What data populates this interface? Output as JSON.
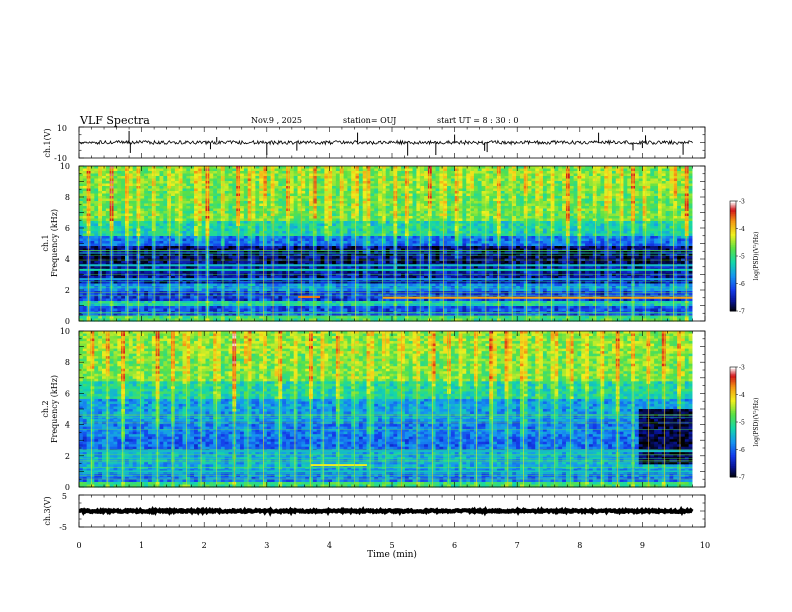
{
  "header": {
    "title": "VLF Spectra",
    "date": "Nov.9 , 2025",
    "station": "station= OUJ",
    "start": "start UT = 8 : 30 : 0"
  },
  "colorbar": {
    "label": "log(PSD)(V²/Hz)",
    "ticks": [
      -3,
      -4,
      -5,
      -6,
      -7
    ],
    "colors": [
      "#ffffff",
      "#d4101a",
      "#f7a114",
      "#f4f01b",
      "#58e04a",
      "#14d4a6",
      "#1696f0",
      "#0a2fe0",
      "#000000"
    ]
  },
  "chart_data": [
    {
      "type": "line",
      "name": "ch.1 waveform",
      "ylabel": "ch.1(V)",
      "ylim": [
        -10,
        10
      ],
      "yticks": [
        "10",
        "-10"
      ],
      "xlim": [
        0,
        9.8
      ],
      "baseline": 0,
      "noise_amplitude": 1.2,
      "spike_times": [
        0.8,
        0.82,
        2.1,
        2.2,
        3.0,
        3.48,
        4.45,
        5.25,
        5.7,
        6.0,
        6.48,
        6.52,
        8.3,
        8.85,
        9.0,
        9.05,
        9.65
      ]
    },
    {
      "type": "heatmap",
      "name": "ch.1 spectrogram",
      "ylabel": "ch.1\nFrequency (kHz)",
      "ylim": [
        0,
        10
      ],
      "yticks": [
        "0",
        "2",
        "4",
        "6",
        "8",
        "10"
      ],
      "xlim": [
        0,
        9.8
      ],
      "zlim": [
        -7,
        -3
      ],
      "bands": [
        {
          "from": 0,
          "to": 0.3,
          "value": -5.0
        },
        {
          "from": 0.3,
          "to": 1.0,
          "value": -6.2
        },
        {
          "from": 1.0,
          "to": 1.35,
          "value": -5.3
        },
        {
          "from": 1.35,
          "to": 2.0,
          "value": -6.3
        },
        {
          "from": 2.0,
          "to": 2.4,
          "value": -5.8
        },
        {
          "from": 2.4,
          "to": 3.5,
          "value": -6.6
        },
        {
          "from": 3.5,
          "to": 4.8,
          "value": -6.8
        },
        {
          "from": 4.8,
          "to": 5.5,
          "value": -6.0
        },
        {
          "from": 5.5,
          "to": 6.5,
          "value": -5.3
        },
        {
          "from": 6.5,
          "to": 8.5,
          "value": -4.8
        },
        {
          "from": 8.5,
          "to": 10,
          "value": -4.7
        }
      ],
      "tones": [
        {
          "f": 1.55,
          "t0": 3.5,
          "t1": 3.85,
          "value": -3.6
        },
        {
          "f": 1.5,
          "t0": 4.85,
          "t1": 9.8,
          "value": -3.8
        },
        {
          "f": 3.3,
          "t0": 0,
          "t1": 9.8,
          "value": -5.2
        },
        {
          "f": 3.6,
          "t0": 0,
          "t1": 9.8,
          "value": -5.4
        },
        {
          "f": 2.7,
          "t0": 0,
          "t1": 9.8,
          "value": -5.6
        }
      ],
      "burst_times": [
        0.15,
        0.35,
        0.52,
        0.78,
        0.95,
        1.2,
        1.45,
        1.6,
        1.9,
        2.05,
        2.3,
        2.55,
        2.75,
        2.95,
        3.1,
        3.35,
        3.55,
        3.75,
        3.98,
        4.2,
        4.42,
        4.6,
        4.85,
        5.05,
        5.25,
        5.45,
        5.6,
        5.82,
        6.05,
        6.25,
        6.5,
        6.7,
        6.92,
        7.15,
        7.35,
        7.55,
        7.8,
        8.0,
        8.25,
        8.45,
        8.65,
        8.85,
        9.05,
        9.3,
        9.5,
        9.7
      ]
    },
    {
      "type": "heatmap",
      "name": "ch.2 spectrogram",
      "ylabel": "ch.2\nFrequency (kHz)",
      "ylim": [
        0,
        10
      ],
      "yticks": [
        "0",
        "2",
        "4",
        "6",
        "8",
        "10"
      ],
      "xlim": [
        0,
        9.8
      ],
      "zlim": [
        -7,
        -3
      ],
      "bands": [
        {
          "from": 0,
          "to": 0.4,
          "value": -5.0
        },
        {
          "from": 0.4,
          "to": 1.2,
          "value": -5.9
        },
        {
          "from": 1.2,
          "to": 2.2,
          "value": -5.6
        },
        {
          "from": 2.2,
          "to": 3.2,
          "value": -6.0
        },
        {
          "from": 3.2,
          "to": 4.2,
          "value": -5.9
        },
        {
          "from": 4.2,
          "to": 5.6,
          "value": -5.7
        },
        {
          "from": 5.6,
          "to": 6.8,
          "value": -5.2
        },
        {
          "from": 6.8,
          "to": 8.5,
          "value": -4.7
        },
        {
          "from": 8.5,
          "to": 10,
          "value": -4.6
        }
      ],
      "quiet_region": {
        "t0": 8.95,
        "t1": 9.8,
        "f0": 1.5,
        "f1": 5.0,
        "value": -6.8
      },
      "tones": [
        {
          "f": 1.4,
          "t0": 3.7,
          "t1": 4.6,
          "value": -4.2
        },
        {
          "f": 2.3,
          "t0": 0,
          "t1": 9.8,
          "value": -5.4
        },
        {
          "f": 1.0,
          "t0": 0,
          "t1": 9.8,
          "value": -5.3
        }
      ],
      "burst_times": [
        0.2,
        0.45,
        0.7,
        0.98,
        1.25,
        1.5,
        1.72,
        1.95,
        2.2,
        2.48,
        2.7,
        2.95,
        3.2,
        3.45,
        3.7,
        3.9,
        4.15,
        4.4,
        4.65,
        4.9,
        5.15,
        5.4,
        5.65,
        5.9,
        6.1,
        6.35,
        6.6,
        6.85,
        7.1,
        7.35,
        7.6,
        7.85,
        8.1,
        8.35,
        8.6,
        8.85,
        9.1,
        9.35,
        9.6
      ]
    },
    {
      "type": "line",
      "name": "ch.3 waveform",
      "ylabel": "ch.3(V)",
      "ylim": [
        -5,
        5
      ],
      "yticks": [
        "5",
        "-5"
      ],
      "xlim": [
        0,
        9.8
      ],
      "baseline": 0,
      "noise_amplitude": 0.3
    }
  ],
  "xaxis": {
    "label": "Time (min)",
    "ticks": [
      "0",
      "1",
      "2",
      "3",
      "4",
      "5",
      "6",
      "7",
      "8",
      "9",
      "10"
    ],
    "xlim": [
      0,
      10
    ]
  }
}
